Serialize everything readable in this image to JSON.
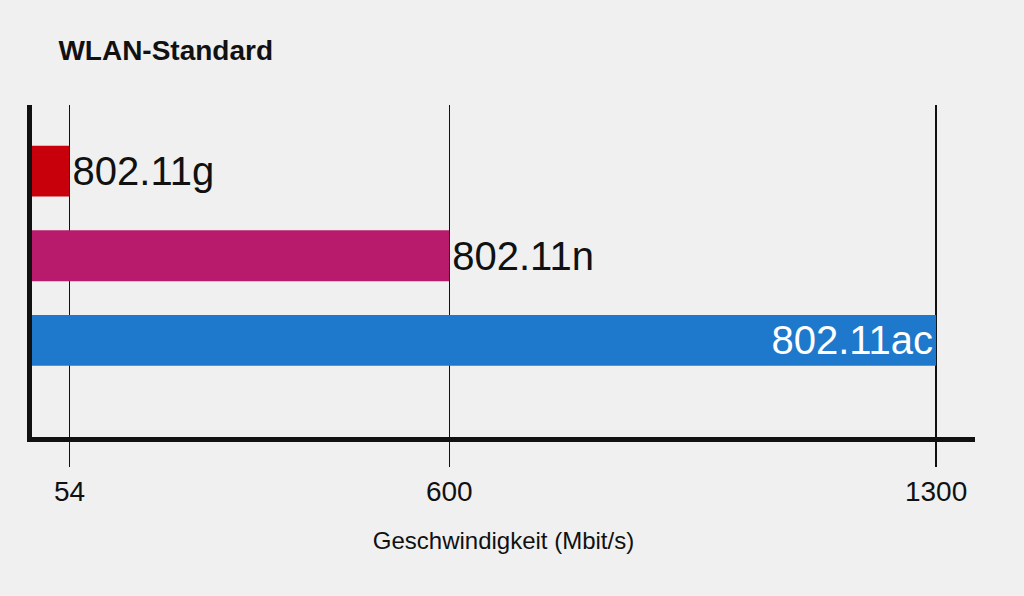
{
  "chart_data": {
    "type": "bar",
    "title": "WLAN-Standard",
    "orientation": "horizontal",
    "categories": [
      "802.11g",
      "802.11n",
      "802.11ac"
    ],
    "values": [
      54,
      600,
      1300
    ],
    "colors": [
      "#c8000c",
      "#b81a6c",
      "#1e78cc"
    ],
    "xlabel": "Geschwindigkeit (Mbit/s)",
    "xlim": [
      0,
      1356
    ],
    "xticks": [
      54,
      600,
      1300
    ],
    "grid": true,
    "tick_labels": "x"
  }
}
